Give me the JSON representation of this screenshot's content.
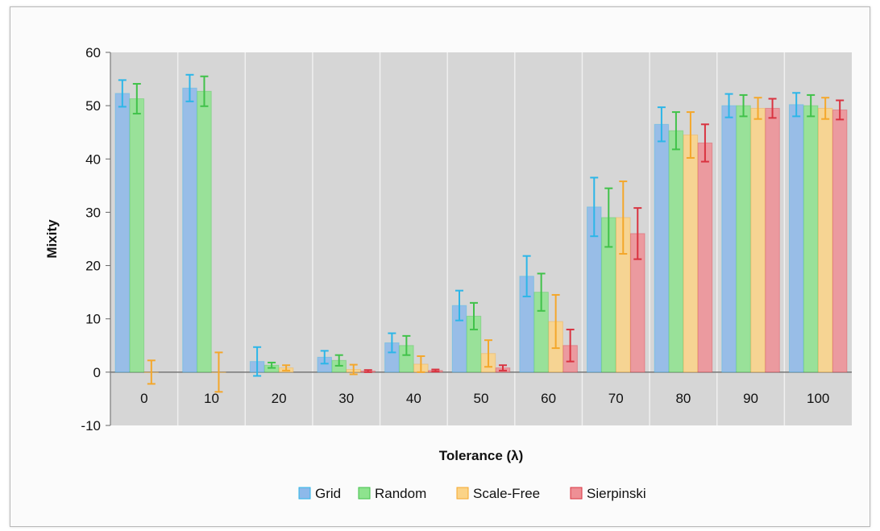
{
  "chart_data": {
    "type": "bar",
    "title": "",
    "xlabel": "Tolerance (λ)",
    "ylabel": "Mixity",
    "categories": [
      "0",
      "10",
      "20",
      "30",
      "40",
      "50",
      "60",
      "70",
      "80",
      "90",
      "100"
    ],
    "ylim": [
      -10,
      60
    ],
    "yticks": [
      -10,
      0,
      10,
      20,
      30,
      40,
      50,
      60
    ],
    "grid": "vertical category separators",
    "legend_position": "bottom",
    "series": [
      {
        "name": "Grid",
        "color": "#8db9ea",
        "error_color": "#2cb6e8",
        "values": [
          52.3,
          53.3,
          2.0,
          2.8,
          5.5,
          12.5,
          18.0,
          31.0,
          46.5,
          50.0,
          50.2
        ],
        "errors": [
          2.5,
          2.5,
          2.7,
          1.2,
          1.8,
          2.8,
          3.8,
          5.5,
          3.2,
          2.2,
          2.2
        ]
      },
      {
        "name": "Random",
        "color": "#8ee38e",
        "error_color": "#41c24a",
        "values": [
          51.3,
          52.7,
          1.3,
          2.2,
          5.0,
          10.5,
          15.0,
          29.0,
          45.3,
          50.0,
          50.0
        ],
        "errors": [
          2.8,
          2.8,
          0.5,
          1.0,
          1.8,
          2.5,
          3.5,
          5.5,
          3.5,
          2.0,
          2.0
        ]
      },
      {
        "name": "Scale-Free",
        "color": "#fbd387",
        "error_color": "#f4a72b",
        "values": [
          0.0,
          0.0,
          0.8,
          0.5,
          1.5,
          3.5,
          9.5,
          29.0,
          44.5,
          49.5,
          49.5
        ],
        "errors": [
          2.2,
          3.7,
          0.5,
          0.9,
          1.5,
          2.5,
          5.0,
          6.8,
          4.3,
          2.0,
          2.0
        ]
      },
      {
        "name": "Sierpinski",
        "color": "#ee8f95",
        "error_color": "#d93340",
        "values": [
          null,
          null,
          null,
          0.2,
          0.3,
          0.8,
          5.0,
          26.0,
          43.0,
          49.5,
          49.2
        ],
        "errors": [
          0,
          0,
          0,
          0.2,
          0.2,
          0.5,
          3.0,
          4.8,
          3.5,
          1.8,
          1.8
        ]
      }
    ]
  }
}
